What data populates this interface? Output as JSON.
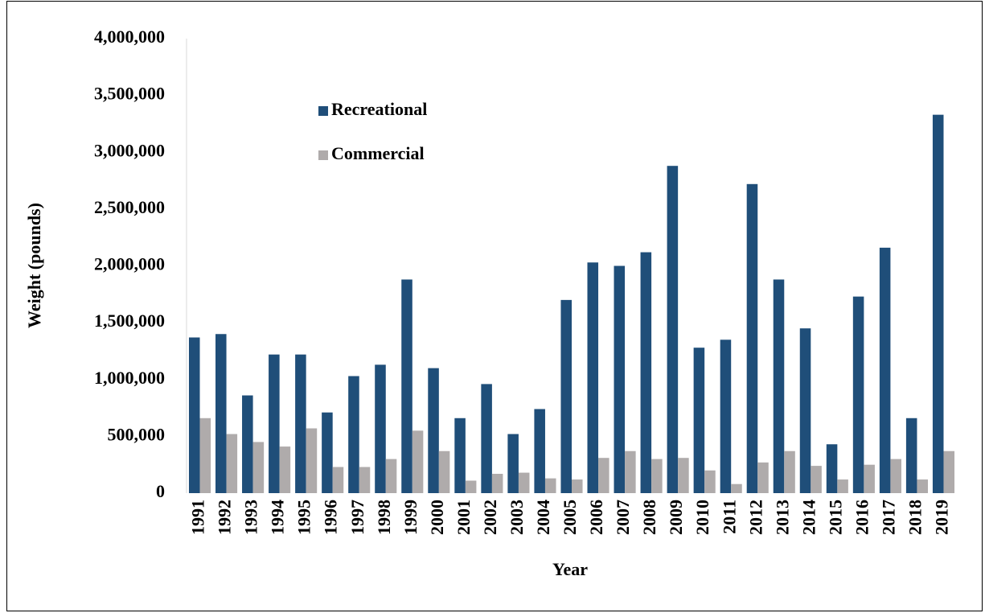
{
  "chart_data": {
    "type": "bar",
    "x_label": "Year",
    "y_label": "Weight (pounds)",
    "categories": [
      "1991",
      "1992",
      "1993",
      "1994",
      "1995",
      "1996",
      "1997",
      "1998",
      "1999",
      "2000",
      "2001",
      "2002",
      "2003",
      "2004",
      "2005",
      "2006",
      "2007",
      "2008",
      "2009",
      "2010",
      "2011",
      "2012",
      "2013",
      "2014",
      "2015",
      "2016",
      "2017",
      "2018",
      "2019"
    ],
    "series": [
      {
        "name": "Recreational",
        "color": "#1f4e79",
        "values": [
          1370000,
          1400000,
          860000,
          1220000,
          1220000,
          710000,
          1030000,
          1130000,
          1880000,
          1100000,
          660000,
          960000,
          520000,
          740000,
          1700000,
          2030000,
          2000000,
          2120000,
          2880000,
          1280000,
          1350000,
          2720000,
          1880000,
          1450000,
          430000,
          1730000,
          2160000,
          660000,
          3330000
        ]
      },
      {
        "name": "Commercial",
        "color": "#afabab",
        "values": [
          660000,
          520000,
          450000,
          410000,
          570000,
          230000,
          230000,
          300000,
          550000,
          370000,
          110000,
          170000,
          180000,
          130000,
          120000,
          310000,
          370000,
          300000,
          310000,
          200000,
          80000,
          270000,
          370000,
          240000,
          120000,
          250000,
          300000,
          120000,
          370000
        ]
      }
    ],
    "ylim": [
      0,
      4000000
    ],
    "yticks": [
      0,
      {
        "value": 500000,
        "label": "500,000"
      },
      {
        "value": 1000000,
        "label": "1,000,000"
      },
      {
        "value": 1500000,
        "label": "1,500,000"
      },
      {
        "value": 2000000,
        "label": "2,000,000"
      },
      {
        "value": 2500000,
        "label": "2,500,000"
      },
      {
        "value": 3000000,
        "label": "3,000,000"
      },
      {
        "value": 3500000,
        "label": "3,500,000"
      },
      {
        "value": 4000000,
        "label": "4,000,000"
      }
    ],
    "grid": false,
    "legend_position": "top-left"
  }
}
